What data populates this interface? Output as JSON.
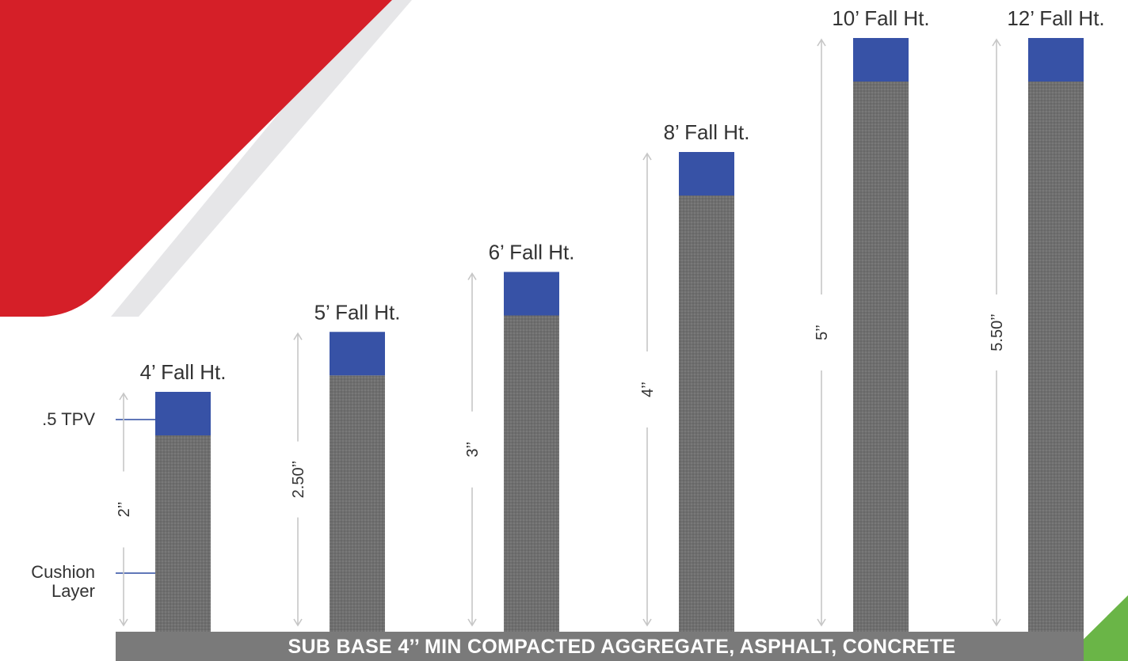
{
  "colors": {
    "accent_red": "#d51f28",
    "accent_green": "#6ab547",
    "tpv_blue": "#3752a6",
    "cushion_gray": "#707070",
    "base_gray": "#7a7a7a"
  },
  "base_label": "SUB BASE 4’’ MIN COMPACTED AGGREGATE, ASPHALT, CONCRETE",
  "layer_labels": {
    "tpv": ".5 TPV",
    "cushion_line1": "Cushion",
    "cushion_line2": "Layer"
  },
  "columns": [
    {
      "fall_height": "4’ Fall Ht.",
      "thickness": "2’’",
      "thickness_in": 2.0
    },
    {
      "fall_height": "5’ Fall Ht.",
      "thickness": "2.50’’",
      "thickness_in": 2.5
    },
    {
      "fall_height": "6’ Fall Ht.",
      "thickness": "3’’",
      "thickness_in": 3.0
    },
    {
      "fall_height": "8’ Fall Ht.",
      "thickness": "4’’",
      "thickness_in": 4.0
    },
    {
      "fall_height": "10’ Fall Ht.",
      "thickness": "5’’",
      "thickness_in": 5.0
    },
    {
      "fall_height": "12’ Fall Ht.",
      "thickness": "5.50’’",
      "thickness_in": 5.5
    }
  ]
}
